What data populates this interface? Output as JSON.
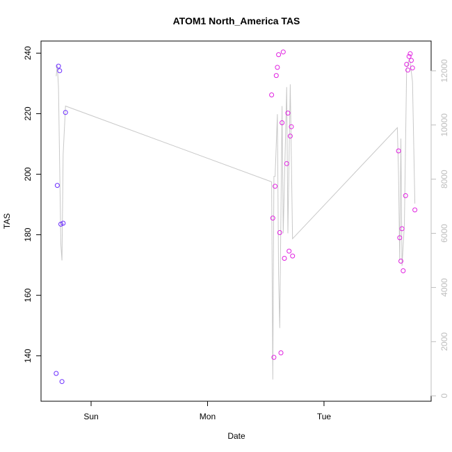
{
  "chart_data": {
    "type": "scatter",
    "title": "ATOM1 North_America TAS",
    "xlabel": "Date",
    "ylabel": "TAS",
    "x_ticks": [
      {
        "label": "Sun",
        "day": 1.0
      },
      {
        "label": "Mon",
        "day": 2.0
      },
      {
        "label": "Tue",
        "day": 3.0
      }
    ],
    "xlim": [
      0.57,
      3.92
    ],
    "ylim": [
      125,
      244
    ],
    "y_ticks": [
      140,
      160,
      180,
      200,
      220,
      240
    ],
    "y2lim": [
      -200,
      13100
    ],
    "y2_ticks": [
      0,
      2000,
      4000,
      6000,
      8000,
      10000,
      12000
    ],
    "line_color": "#c8c8c8",
    "point_colors": {
      "early": "#6a2bff",
      "late": "#e020e0"
    },
    "points": [
      {
        "day": 0.7,
        "tas": 134.2,
        "color": "early"
      },
      {
        "day": 0.71,
        "tas": 196.3,
        "color": "early"
      },
      {
        "day": 0.72,
        "tas": 235.7,
        "color": "early"
      },
      {
        "day": 0.73,
        "tas": 234.2,
        "color": "early"
      },
      {
        "day": 0.74,
        "tas": 183.5,
        "color": "early"
      },
      {
        "day": 0.75,
        "tas": 131.5,
        "color": "early"
      },
      {
        "day": 0.76,
        "tas": 183.8,
        "color": "early"
      },
      {
        "day": 0.78,
        "tas": 220.4,
        "color": "early"
      },
      {
        "day": 2.55,
        "tas": 226.2,
        "color": "late"
      },
      {
        "day": 2.56,
        "tas": 185.5,
        "color": "late"
      },
      {
        "day": 2.57,
        "tas": 139.5,
        "color": "late"
      },
      {
        "day": 2.58,
        "tas": 196.0,
        "color": "late"
      },
      {
        "day": 2.59,
        "tas": 232.6,
        "color": "late"
      },
      {
        "day": 2.6,
        "tas": 235.3,
        "color": "late"
      },
      {
        "day": 2.61,
        "tas": 239.5,
        "color": "late"
      },
      {
        "day": 2.62,
        "tas": 180.7,
        "color": "late"
      },
      {
        "day": 2.63,
        "tas": 141.0,
        "color": "late"
      },
      {
        "day": 2.64,
        "tas": 217.0,
        "color": "late"
      },
      {
        "day": 2.65,
        "tas": 240.4,
        "color": "late"
      },
      {
        "day": 2.66,
        "tas": 172.2,
        "color": "late"
      },
      {
        "day": 2.68,
        "tas": 203.5,
        "color": "late"
      },
      {
        "day": 2.69,
        "tas": 220.2,
        "color": "late"
      },
      {
        "day": 2.7,
        "tas": 174.6,
        "color": "late"
      },
      {
        "day": 2.71,
        "tas": 212.6,
        "color": "late"
      },
      {
        "day": 2.72,
        "tas": 215.7,
        "color": "late"
      },
      {
        "day": 2.73,
        "tas": 173.0,
        "color": "late"
      },
      {
        "day": 3.64,
        "tas": 207.7,
        "color": "late"
      },
      {
        "day": 3.65,
        "tas": 179.0,
        "color": "late"
      },
      {
        "day": 3.66,
        "tas": 171.3,
        "color": "late"
      },
      {
        "day": 3.67,
        "tas": 182.0,
        "color": "late"
      },
      {
        "day": 3.68,
        "tas": 168.1,
        "color": "late"
      },
      {
        "day": 3.7,
        "tas": 192.9,
        "color": "late"
      },
      {
        "day": 3.71,
        "tas": 236.3,
        "color": "late"
      },
      {
        "day": 3.72,
        "tas": 234.4,
        "color": "late"
      },
      {
        "day": 3.73,
        "tas": 238.9,
        "color": "late"
      },
      {
        "day": 3.74,
        "tas": 239.8,
        "color": "late"
      },
      {
        "day": 3.75,
        "tas": 237.6,
        "color": "late"
      },
      {
        "day": 3.76,
        "tas": 235.1,
        "color": "late"
      },
      {
        "day": 3.78,
        "tas": 188.2,
        "color": "late"
      }
    ],
    "count_series": [
      {
        "day": 0.7,
        "count": 11800
      },
      {
        "day": 0.71,
        "count": 12200
      },
      {
        "day": 0.72,
        "count": 11400
      },
      {
        "day": 0.74,
        "count": 5600
      },
      {
        "day": 0.75,
        "count": 5000
      },
      {
        "day": 0.76,
        "count": 8900
      },
      {
        "day": 0.78,
        "count": 10700
      },
      {
        "day": 2.55,
        "count": 7900
      },
      {
        "day": 2.56,
        "count": 600
      },
      {
        "day": 2.57,
        "count": 8100
      },
      {
        "day": 2.58,
        "count": 8100
      },
      {
        "day": 2.6,
        "count": 10400
      },
      {
        "day": 2.61,
        "count": 4500
      },
      {
        "day": 2.62,
        "count": 2500
      },
      {
        "day": 2.64,
        "count": 10700
      },
      {
        "day": 2.65,
        "count": 6000
      },
      {
        "day": 2.68,
        "count": 11400
      },
      {
        "day": 2.69,
        "count": 6000
      },
      {
        "day": 2.71,
        "count": 11500
      },
      {
        "day": 2.73,
        "count": 5800
      },
      {
        "day": 3.63,
        "count": 9900
      },
      {
        "day": 3.64,
        "count": 8200
      },
      {
        "day": 3.65,
        "count": 5000
      },
      {
        "day": 3.66,
        "count": 9500
      },
      {
        "day": 3.67,
        "count": 4800
      },
      {
        "day": 3.69,
        "count": 6300
      },
      {
        "day": 3.71,
        "count": 12100
      },
      {
        "day": 3.73,
        "count": 12400
      },
      {
        "day": 3.74,
        "count": 12300
      },
      {
        "day": 3.76,
        "count": 11600
      },
      {
        "day": 3.78,
        "count": 7100
      }
    ]
  }
}
